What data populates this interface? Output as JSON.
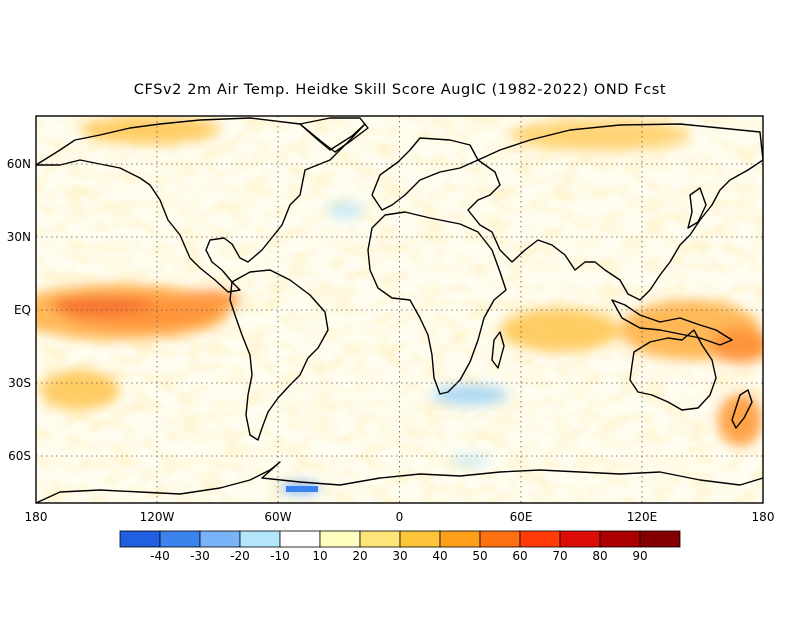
{
  "title": "CFSv2 2m Air Temp. Heidke Skill Score AugIC (1982-2022) OND Fcst",
  "map": {
    "lat_labels": [
      "60N",
      "30N",
      "EQ",
      "30S",
      "60S"
    ],
    "lon_labels": [
      "180",
      "120W",
      "60W",
      "0",
      "60E",
      "120E",
      "180"
    ],
    "grid_lines": "dotted",
    "field": "Heidke skill score, 2m air temperature",
    "regions": [
      {
        "name": "eastern-equatorial-pacific",
        "level": 70
      },
      {
        "name": "west-pacific-warm-pool",
        "level": 50
      },
      {
        "name": "indian-ocean",
        "level": 40
      },
      {
        "name": "south-atlantic",
        "level": -20
      },
      {
        "name": "antarctic-weddell",
        "level": -40
      }
    ]
  },
  "colorbar": {
    "levels": [
      "-40",
      "-30",
      "-20",
      "-10",
      "10",
      "20",
      "30",
      "40",
      "50",
      "60",
      "70",
      "80",
      "90"
    ],
    "colors": [
      "#1f5fe0",
      "#3d83ee",
      "#78b3f7",
      "#b4e6fb",
      "#ffffff",
      "#ffffc0",
      "#ffe47a",
      "#ffc53a",
      "#ff9f1a",
      "#ff7010",
      "#ff3c08",
      "#dc0c06",
      "#aa0000",
      "#840000"
    ]
  }
}
